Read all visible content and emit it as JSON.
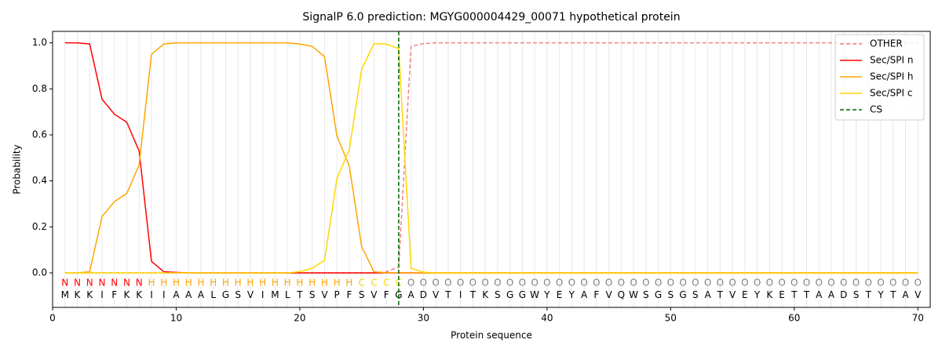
{
  "chart_data": {
    "type": "line",
    "title": "SignalP 6.0 prediction: MGYG000004429_00071 hypothetical protein",
    "xlabel": "Protein sequence",
    "ylabel": "Probability",
    "x": [
      1,
      2,
      3,
      4,
      5,
      6,
      7,
      8,
      9,
      10,
      11,
      12,
      13,
      14,
      15,
      16,
      17,
      18,
      19,
      20,
      21,
      22,
      23,
      24,
      25,
      26,
      27,
      28,
      29,
      30,
      31,
      32,
      33,
      34,
      35,
      36,
      37,
      38,
      39,
      40,
      41,
      42,
      43,
      44,
      45,
      46,
      47,
      48,
      49,
      50,
      51,
      52,
      53,
      54,
      55,
      56,
      57,
      58,
      59,
      60,
      61,
      62,
      63,
      64,
      65,
      66,
      67,
      68,
      69,
      70
    ],
    "sequence": [
      "M",
      "K",
      "K",
      "I",
      "F",
      "K",
      "K",
      "I",
      "I",
      "A",
      "A",
      "A",
      "L",
      "G",
      "S",
      "V",
      "I",
      "M",
      "L",
      "T",
      "S",
      "V",
      "P",
      "F",
      "S",
      "V",
      "F",
      "G",
      "A",
      "D",
      "V",
      "T",
      "I",
      "T",
      "K",
      "S",
      "G",
      "G",
      "W",
      "Y",
      "E",
      "Y",
      "A",
      "F",
      "V",
      "Q",
      "W",
      "S",
      "G",
      "S",
      "G",
      "S",
      "A",
      "T",
      "V",
      "E",
      "Y",
      "K",
      "E",
      "T",
      "T",
      "A",
      "A",
      "D",
      "S",
      "T",
      "Y",
      "T",
      "A",
      "V"
    ],
    "regions": [
      "N",
      "N",
      "N",
      "N",
      "N",
      "N",
      "N",
      "H",
      "H",
      "H",
      "H",
      "H",
      "H",
      "H",
      "H",
      "H",
      "H",
      "H",
      "H",
      "H",
      "H",
      "H",
      "H",
      "H",
      "C",
      "C",
      "C",
      "C",
      "O",
      "O",
      "O",
      "O",
      "O",
      "O",
      "O",
      "O",
      "O",
      "O",
      "O",
      "O",
      "O",
      "O",
      "O",
      "O",
      "O",
      "O",
      "O",
      "O",
      "O",
      "O",
      "O",
      "O",
      "O",
      "O",
      "O",
      "O",
      "O",
      "O",
      "O",
      "O",
      "O",
      "O",
      "O",
      "O",
      "O",
      "O",
      "O",
      "O",
      "O",
      "O"
    ],
    "region_colors": {
      "N": "#ff0000",
      "H": "#ffa500",
      "C": "#ffd700",
      "O": "#808080"
    },
    "series": [
      {
        "name": "OTHER",
        "color": "#f08080",
        "dashed": true,
        "values": [
          0,
          0,
          0,
          0,
          0,
          0,
          0,
          0,
          0,
          0,
          0,
          0,
          0,
          0,
          0,
          0,
          0,
          0,
          0,
          0,
          0,
          0,
          0,
          0,
          0,
          0,
          0.005,
          0.025,
          0.985,
          0.997,
          1,
          1,
          1,
          1,
          1,
          1,
          1,
          1,
          1,
          1,
          1,
          1,
          1,
          1,
          1,
          1,
          1,
          1,
          1,
          1,
          1,
          1,
          1,
          1,
          1,
          1,
          1,
          1,
          1,
          1,
          1,
          1,
          1,
          1,
          1,
          1,
          1,
          1,
          1,
          1
        ]
      },
      {
        "name": "Sec/SPI n",
        "color": "#ff0000",
        "values": [
          1,
          1,
          0.995,
          0.755,
          0.69,
          0.655,
          0.53,
          0.05,
          0.005,
          0.002,
          0,
          0,
          0,
          0,
          0,
          0,
          0,
          0,
          0,
          0,
          0,
          0,
          0,
          0,
          0,
          0,
          0,
          0,
          0,
          0,
          0,
          0,
          0,
          0,
          0,
          0,
          0,
          0,
          0,
          0,
          0,
          0,
          0,
          0,
          0,
          0,
          0,
          0,
          0,
          0,
          0,
          0,
          0,
          0,
          0,
          0,
          0,
          0,
          0,
          0,
          0,
          0,
          0,
          0,
          0,
          0,
          0,
          0,
          0,
          0
        ]
      },
      {
        "name": "Sec/SPI h",
        "color": "#ffa500",
        "values": [
          0,
          0,
          0.005,
          0.245,
          0.31,
          0.345,
          0.47,
          0.95,
          0.995,
          1,
          1,
          1,
          1,
          1,
          1,
          1,
          1,
          1,
          1,
          0.995,
          0.985,
          0.94,
          0.595,
          0.465,
          0.115,
          0.005,
          0,
          0,
          0,
          0,
          0,
          0,
          0,
          0,
          0,
          0,
          0,
          0,
          0,
          0,
          0,
          0,
          0,
          0,
          0,
          0,
          0,
          0,
          0,
          0,
          0,
          0,
          0,
          0,
          0,
          0,
          0,
          0,
          0,
          0,
          0,
          0,
          0,
          0,
          0,
          0,
          0,
          0,
          0,
          0
        ]
      },
      {
        "name": "Sec/SPI c",
        "color": "#ffd700",
        "values": [
          0,
          0,
          0,
          0,
          0,
          0,
          0,
          0,
          0,
          0,
          0,
          0,
          0,
          0,
          0,
          0,
          0,
          0,
          0,
          0.005,
          0.02,
          0.055,
          0.41,
          0.535,
          0.885,
          0.997,
          0.995,
          0.975,
          0.02,
          0.003,
          0,
          0,
          0,
          0,
          0,
          0,
          0,
          0,
          0,
          0,
          0,
          0,
          0,
          0,
          0,
          0,
          0,
          0,
          0,
          0,
          0,
          0,
          0,
          0,
          0,
          0,
          0,
          0,
          0,
          0,
          0,
          0,
          0,
          0,
          0,
          0,
          0,
          0,
          0,
          0
        ]
      }
    ],
    "cs": {
      "name": "CS",
      "x": 28,
      "color": "#006400"
    },
    "xlim": [
      0,
      71
    ],
    "xticks": [
      0,
      10,
      20,
      30,
      40,
      50,
      60,
      70
    ],
    "ylim": [
      -0.15,
      1.05
    ],
    "yticks": [
      {
        "value": 0,
        "label": "0.0"
      },
      {
        "value": 0.2,
        "label": "0.2"
      },
      {
        "value": 0.4,
        "label": "0.4"
      },
      {
        "value": 0.6,
        "label": "0.6"
      },
      {
        "value": 0.8,
        "label": "0.8"
      },
      {
        "value": 1,
        "label": "1.0"
      }
    ],
    "legend": "upper right",
    "grid": true
  }
}
